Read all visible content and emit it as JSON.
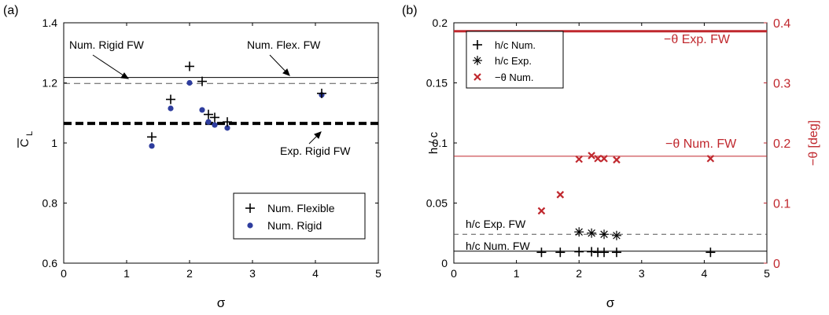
{
  "chart_data": [
    {
      "type": "scatter",
      "panel_label": "(a)",
      "xlabel": "σ",
      "ylabel_main": "C",
      "ylabel_sub": "L",
      "xlim": [
        0,
        5
      ],
      "ylim": [
        0.6,
        1.4
      ],
      "xticks": [
        "0",
        "1",
        "2",
        "3",
        "4",
        "5"
      ],
      "yticks": [
        "0.6",
        "0.8",
        "1",
        "1.2",
        "1.4"
      ],
      "reference_lines": [
        {
          "name": "Num. Flex. FW",
          "y": 1.218,
          "style": "solid"
        },
        {
          "name": "Num. Rigid FW",
          "y": 1.198,
          "style": "dashed"
        },
        {
          "name": "Exp. Rigid FW",
          "y": 1.065,
          "style": "thick-dashed"
        }
      ],
      "annotations": [
        "Num. Rigid FW",
        "Num. Flex. FW",
        "Exp. Rigid FW"
      ],
      "series": [
        {
          "name": "Num. Flexible",
          "marker": "plus",
          "x": [
            1.4,
            1.7,
            2.0,
            2.2,
            2.3,
            2.4,
            2.6,
            4.1
          ],
          "y": [
            1.02,
            1.145,
            1.255,
            1.205,
            1.095,
            1.085,
            1.07,
            1.165
          ]
        },
        {
          "name": "Num. Rigid",
          "marker": "dot",
          "color": "#2e3d9e",
          "x": [
            1.4,
            1.7,
            2.0,
            2.2,
            2.3,
            2.4,
            2.6,
            4.1
          ],
          "y": [
            0.99,
            1.115,
            1.2,
            1.11,
            1.07,
            1.06,
            1.05,
            1.16
          ]
        }
      ],
      "legend_position": "bottom-right"
    },
    {
      "type": "scatter",
      "panel_label": "(b)",
      "xlabel": "σ",
      "ylabel_left": "h / c",
      "ylabel_right": "−θ [deg]",
      "xlim": [
        0,
        5
      ],
      "ylim_left": [
        0,
        0.2
      ],
      "ylim_right": [
        0,
        0.4
      ],
      "xticks": [
        "0",
        "1",
        "2",
        "3",
        "4",
        "5"
      ],
      "yticks_left": [
        "0",
        "0.05",
        "0.1",
        "0.15",
        "0.2"
      ],
      "yticks_right": [
        "0",
        "0.1",
        "0.2",
        "0.3",
        "0.4"
      ],
      "reference_lines": [
        {
          "name": "−θ Exp. FW",
          "y_right": 0.386,
          "style": "thick",
          "color": "#c0282e"
        },
        {
          "name": "−θ Num. FW",
          "y_right": 0.178,
          "style": "solid",
          "color": "#c0282e"
        },
        {
          "name": "h/c Exp. FW",
          "y": 0.024,
          "style": "dashed"
        },
        {
          "name": "h/c Num. FW",
          "y": 0.01,
          "style": "solid"
        }
      ],
      "annotations": [
        "−θ Exp. FW",
        "−θ Num. FW",
        "h/c Exp. FW",
        "h/c Num. FW"
      ],
      "series": [
        {
          "name": "h/c Num.",
          "marker": "plus",
          "axis": "left",
          "x": [
            1.4,
            1.7,
            2.0,
            2.2,
            2.3,
            2.4,
            2.6,
            4.1
          ],
          "y": [
            0.009,
            0.009,
            0.0095,
            0.0095,
            0.009,
            0.009,
            0.009,
            0.009
          ]
        },
        {
          "name": "h/c Exp.",
          "marker": "asterisk",
          "axis": "left",
          "x": [
            2.0,
            2.2,
            2.4,
            2.6
          ],
          "y": [
            0.026,
            0.025,
            0.024,
            0.023
          ]
        },
        {
          "name": "−θ Num.",
          "marker": "x",
          "axis": "right",
          "color": "#c0282e",
          "x": [
            1.4,
            1.7,
            2.0,
            2.2,
            2.3,
            2.4,
            2.6,
            4.1
          ],
          "y": [
            0.087,
            0.114,
            0.173,
            0.179,
            0.174,
            0.174,
            0.172,
            0.174
          ]
        }
      ],
      "legend_position": "top-left"
    }
  ]
}
